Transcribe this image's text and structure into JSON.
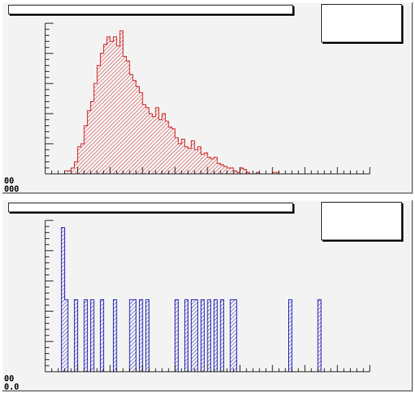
{
  "colors": {
    "pad_background": "#f3f3f3",
    "histogram_1_line": "#cc0000",
    "histogram_1_hatch": "#cc0000",
    "histogram_2_line": "#0000aa",
    "histogram_2_hatch": "#0000aa",
    "axis": "#000000"
  },
  "icons": [],
  "pads": [
    {
      "title": "",
      "stats": "",
      "corner_labels": [
        "00",
        "000"
      ]
    },
    {
      "title": "",
      "stats": "",
      "corner_labels": [
        "00",
        "0.0"
      ]
    }
  ],
  "chart_data": [
    {
      "type": "bar",
      "style": "histogram",
      "fill": "hatched",
      "title": "",
      "xlabel": "",
      "ylabel": "",
      "grid": false,
      "legend": "none",
      "stats_box": "top-right",
      "x_bins": 100,
      "xlim": [
        0,
        100
      ],
      "ylim": [
        0,
        100
      ],
      "values": [
        0,
        0,
        0,
        0,
        0,
        0,
        2,
        2,
        4,
        8,
        18,
        20,
        32,
        42,
        48,
        60,
        72,
        80,
        86,
        91,
        88,
        91,
        85,
        95,
        78,
        75,
        66,
        62,
        58,
        54,
        46,
        44,
        40,
        38,
        44,
        36,
        40,
        35,
        31,
        30,
        24,
        20,
        23,
        18,
        17,
        22,
        16,
        18,
        13,
        14,
        11,
        10,
        11,
        7,
        6,
        5,
        4,
        4,
        2,
        1,
        4,
        3,
        1,
        0,
        0,
        1,
        0,
        0,
        0,
        0,
        1,
        1,
        0,
        0,
        0,
        0,
        0,
        0,
        0,
        0,
        0,
        0,
        0,
        0,
        0,
        0,
        0,
        0,
        0,
        0,
        0,
        0,
        0,
        0,
        0,
        0,
        0,
        0,
        0,
        0
      ]
    },
    {
      "type": "bar",
      "style": "histogram",
      "fill": "hatched",
      "title": "",
      "xlabel": "",
      "ylabel": "",
      "grid": false,
      "legend": "none",
      "stats_box": "top-right",
      "x_bins": 100,
      "xlim": [
        0,
        100
      ],
      "ylim": [
        0,
        2.1
      ],
      "values": [
        0,
        0,
        0,
        0,
        0,
        2,
        1,
        0,
        0,
        1,
        0,
        0,
        1,
        0,
        1,
        0,
        0,
        1,
        0,
        0,
        0,
        1,
        0,
        0,
        0,
        0,
        1,
        1,
        0,
        1,
        0,
        1,
        0,
        0,
        0,
        0,
        0,
        0,
        0,
        0,
        1,
        0,
        0,
        1,
        0,
        1,
        1,
        0,
        1,
        0,
        1,
        0,
        1,
        0,
        1,
        0,
        0,
        1,
        1,
        0,
        0,
        0,
        0,
        0,
        0,
        0,
        0,
        0,
        0,
        0,
        0,
        0,
        0,
        0,
        0,
        1,
        0,
        0,
        0,
        0,
        0,
        0,
        0,
        0,
        1,
        0,
        0,
        0,
        0,
        0,
        0,
        0,
        0,
        0,
        0,
        0,
        0,
        0,
        0,
        0
      ]
    }
  ]
}
